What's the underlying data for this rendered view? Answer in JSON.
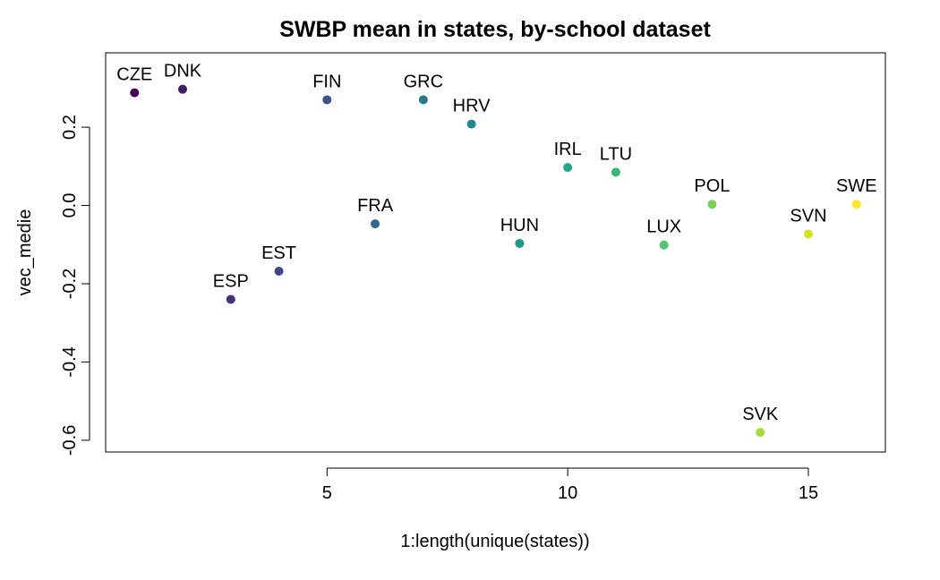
{
  "chart_data": {
    "type": "scatter",
    "title": "SWBP mean in states, by-school dataset",
    "xlabel": "1:length(unique(states))",
    "ylabel": "vec_medie",
    "xlim": [
      0.4,
      16.6
    ],
    "ylim": [
      -0.63,
      0.39
    ],
    "xticks": [
      5,
      10,
      15
    ],
    "yticks": [
      -0.6,
      -0.4,
      -0.2,
      0.0,
      0.2
    ],
    "ytick_labels": [
      "-0.6",
      "-0.4",
      "-0.2",
      "0.0",
      "0.2"
    ],
    "grid": false,
    "legend": "none",
    "points": [
      {
        "x": 1,
        "y": 0.288,
        "label": "CZE",
        "color": "#440154"
      },
      {
        "x": 2,
        "y": 0.297,
        "label": "DNK",
        "color": "#481a6c"
      },
      {
        "x": 3,
        "y": -0.24,
        "label": "ESP",
        "color": "#472f7d"
      },
      {
        "x": 4,
        "y": -0.168,
        "label": "EST",
        "color": "#414487"
      },
      {
        "x": 5,
        "y": 0.27,
        "label": "FIN",
        "color": "#39568c"
      },
      {
        "x": 6,
        "y": -0.047,
        "label": "FRA",
        "color": "#31688e"
      },
      {
        "x": 7,
        "y": 0.27,
        "label": "GRC",
        "color": "#2a788e"
      },
      {
        "x": 8,
        "y": 0.208,
        "label": "HRV",
        "color": "#23888e"
      },
      {
        "x": 9,
        "y": -0.097,
        "label": "HUN",
        "color": "#1f988b"
      },
      {
        "x": 10,
        "y": 0.097,
        "label": "IRL",
        "color": "#22a884"
      },
      {
        "x": 11,
        "y": 0.085,
        "label": "LTU",
        "color": "#35b779"
      },
      {
        "x": 12,
        "y": -0.101,
        "label": "LUX",
        "color": "#54c568"
      },
      {
        "x": 13,
        "y": 0.003,
        "label": "POL",
        "color": "#7ad151"
      },
      {
        "x": 14,
        "y": -0.58,
        "label": "SVK",
        "color": "#a5db36"
      },
      {
        "x": 15,
        "y": -0.073,
        "label": "SVN",
        "color": "#d2e21b"
      },
      {
        "x": 16,
        "y": 0.003,
        "label": "SWE",
        "color": "#fde725"
      }
    ]
  }
}
